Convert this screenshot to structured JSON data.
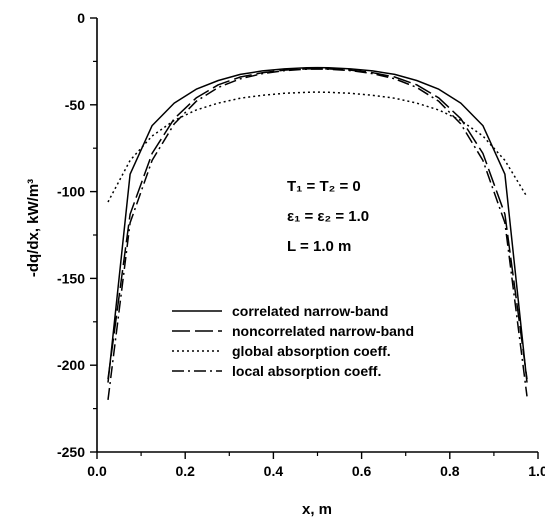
{
  "chart_data": {
    "type": "line",
    "xlabel": "x, m",
    "ylabel": "-dq/dx, kW/m³",
    "xlim": [
      0,
      1
    ],
    "ylim": [
      -250,
      0
    ],
    "xticks": [
      "0.0",
      "0.2",
      "0.4",
      "0.6",
      "0.8",
      "1.0"
    ],
    "yticks": [
      "0",
      "-50",
      "-100",
      "-150",
      "-200",
      "-250"
    ],
    "grid": false,
    "legend_position": "bottom-left",
    "annotations": [
      "T₁ = T₂ = 0",
      "ε₁ = ε₂ = 1.0",
      "L = 1.0 m"
    ],
    "series": [
      {
        "name": "correlated narrow-band",
        "style": "solid",
        "x": [
          0.025,
          0.075,
          0.125,
          0.175,
          0.225,
          0.275,
          0.325,
          0.375,
          0.425,
          0.475,
          0.5,
          0.525,
          0.575,
          0.625,
          0.675,
          0.725,
          0.775,
          0.825,
          0.875,
          0.925,
          0.975
        ],
        "y": [
          -210,
          -90,
          -62,
          -49,
          -41,
          -36,
          -32.5,
          -30.5,
          -29.3,
          -28.7,
          -28.6,
          -28.7,
          -29.3,
          -30.5,
          -32.5,
          -36,
          -41,
          -49,
          -62,
          -90,
          -210
        ]
      },
      {
        "name": "noncorrelated narrow-band",
        "style": "longdash",
        "x": [
          0.025,
          0.075,
          0.125,
          0.175,
          0.225,
          0.275,
          0.325,
          0.375,
          0.425,
          0.475,
          0.5,
          0.525,
          0.575,
          0.625,
          0.675,
          0.725,
          0.775,
          0.825,
          0.875,
          0.925,
          0.975
        ],
        "y": [
          -208,
          -113,
          -78,
          -58,
          -46,
          -38.5,
          -34,
          -31.5,
          -30,
          -29.3,
          -29.2,
          -29.3,
          -30,
          -31.5,
          -34,
          -38.5,
          -46,
          -58,
          -78,
          -113,
          -208
        ]
      },
      {
        "name": "global absorption coeff.",
        "style": "dotted",
        "x": [
          0.025,
          0.075,
          0.125,
          0.175,
          0.225,
          0.275,
          0.325,
          0.375,
          0.425,
          0.475,
          0.5,
          0.525,
          0.575,
          0.625,
          0.675,
          0.725,
          0.775,
          0.825,
          0.875,
          0.925,
          0.975
        ],
        "y": [
          -106,
          -82,
          -68,
          -59,
          -53,
          -49,
          -46.2,
          -44.5,
          -43.4,
          -42.8,
          -42.7,
          -42.8,
          -43.4,
          -44.5,
          -46.2,
          -49,
          -53,
          -59,
          -68,
          -82,
          -103
        ]
      },
      {
        "name": "local absorption coeff.",
        "style": "dashdot",
        "x": [
          0.025,
          0.075,
          0.125,
          0.175,
          0.225,
          0.275,
          0.325,
          0.375,
          0.425,
          0.475,
          0.5,
          0.525,
          0.575,
          0.625,
          0.675,
          0.725,
          0.775,
          0.825,
          0.875,
          0.925,
          0.975
        ],
        "y": [
          -220,
          -118,
          -82,
          -61,
          -48,
          -40,
          -35,
          -32,
          -30.3,
          -29.5,
          -29.4,
          -29.5,
          -30.3,
          -32,
          -35,
          -40,
          -48,
          -61,
          -82,
          -118,
          -218
        ]
      }
    ]
  }
}
